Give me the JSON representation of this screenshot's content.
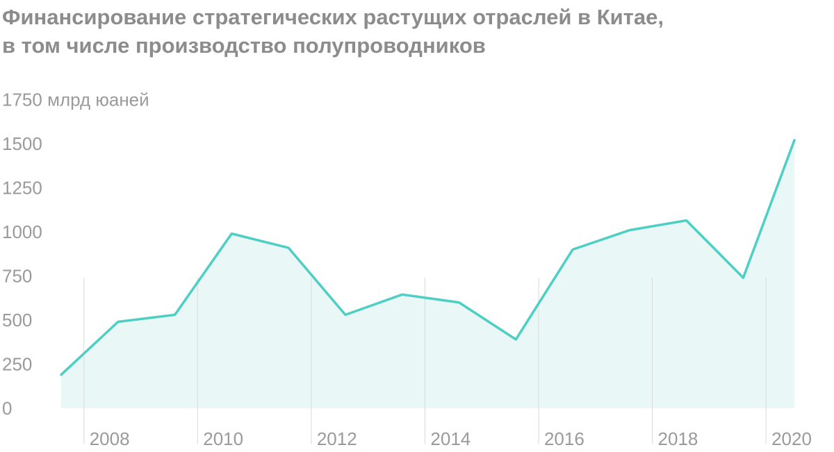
{
  "title": {
    "line1": "Финансирование стратегических растущих отраслей в Китае,",
    "line2": "в том числе производство полупроводников"
  },
  "chart_data": {
    "type": "area",
    "title": "Финансирование стратегических растущих отраслей в Китае, в том числе производство полупроводников",
    "ylabel": "млрд юаней",
    "ylim": [
      0,
      1750
    ],
    "yticks": [
      0,
      250,
      500,
      750,
      1000,
      1250,
      1500,
      1750
    ],
    "ytick_labels": [
      "0",
      "250",
      "500",
      "750",
      "1000",
      "1250",
      "1500",
      "1750 млрд юаней"
    ],
    "xticks": [
      2008,
      2010,
      2012,
      2014,
      2016,
      2018,
      2020
    ],
    "xtick_labels": [
      "2008",
      "2010",
      "2012",
      "2014",
      "2016",
      "2018",
      "2020"
    ],
    "xlim": [
      2007.6,
      2020.5
    ],
    "grid": "vertical lines at year ticks",
    "series": [
      {
        "x": [
          2007.6,
          2008.6,
          2009.6,
          2010.6,
          2011.6,
          2012.6,
          2013.6,
          2014.6,
          2015.6,
          2016.6,
          2017.6,
          2018.6,
          2019.6,
          2020.5
        ],
        "values": [
          190,
          490,
          530,
          990,
          910,
          530,
          645,
          600,
          390,
          900,
          1010,
          1065,
          740,
          1520
        ]
      }
    ],
    "colors": {
      "line": "#4dcfc3",
      "fill": "#eaf7f7",
      "grid": "#d9d9d9",
      "text": "#9a9a9a"
    }
  }
}
